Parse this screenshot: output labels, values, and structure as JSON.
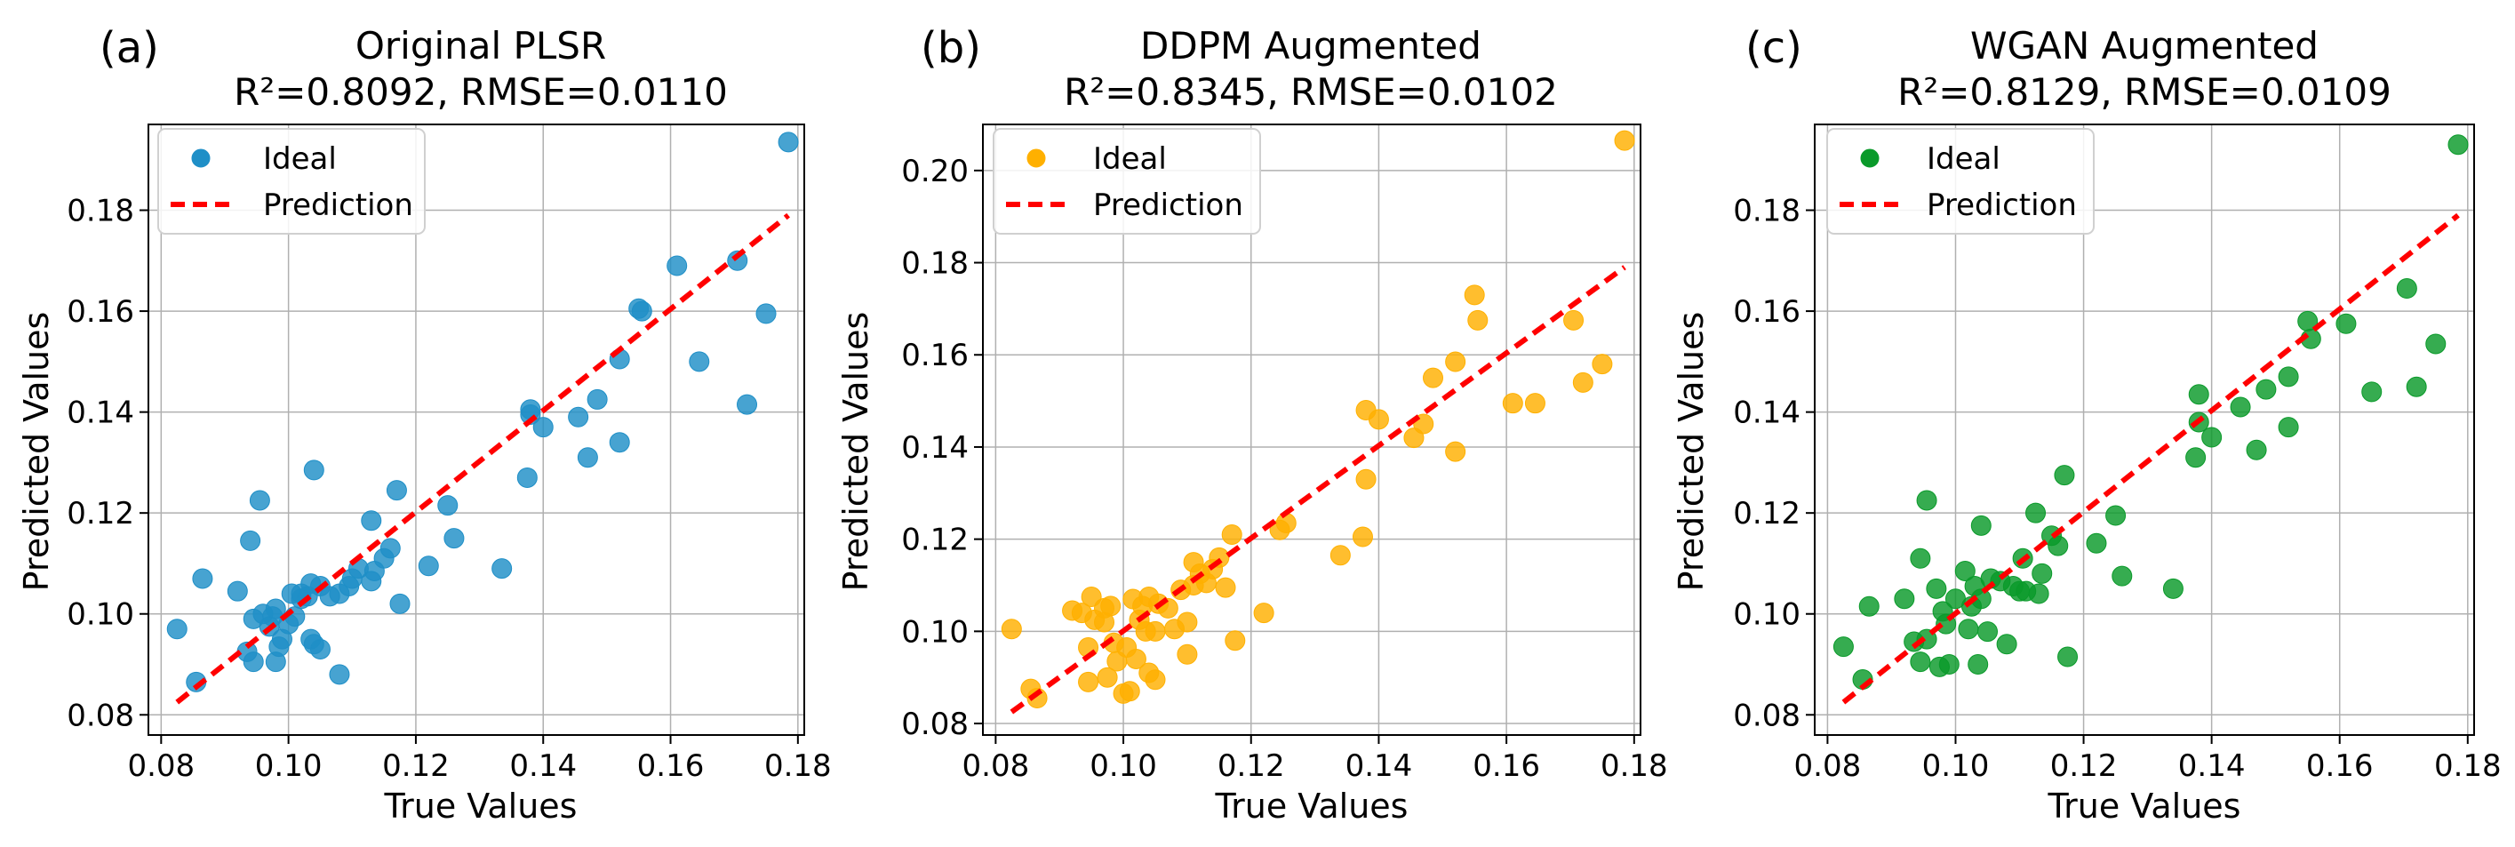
{
  "chart_data": [
    {
      "type": "scatter",
      "panel_label": "(a)",
      "title": "Original PLSR",
      "subtitle": "R²=0.8092, RMSE=0.0110",
      "xlabel": "True Values",
      "ylabel": "Predicted Values",
      "xlim": [
        0.078,
        0.181
      ],
      "ylim": [
        0.076,
        0.197
      ],
      "xticks": [
        0.08,
        0.1,
        0.12,
        0.14,
        0.16,
        0.18
      ],
      "xtick_labels": [
        "0.08",
        "0.10",
        "0.12",
        "0.14",
        "0.16",
        "0.18"
      ],
      "yticks": [
        0.08,
        0.1,
        0.12,
        0.14,
        0.16,
        0.18
      ],
      "ytick_labels": [
        "0.08",
        "0.10",
        "0.12",
        "0.14",
        "0.16",
        "0.18"
      ],
      "grid": true,
      "legend": {
        "position": "top-left",
        "scatter_label": "Ideal",
        "line_label": "Prediction"
      },
      "marker_color": "#1f8fc7",
      "line_color": "#ff0000",
      "line": {
        "x": [
          0.0825,
          0.1785
        ],
        "y": [
          0.0825,
          0.179
        ]
      },
      "points": [
        [
          0.0825,
          0.097
        ],
        [
          0.0855,
          0.0865
        ],
        [
          0.0865,
          0.107
        ],
        [
          0.092,
          0.1045
        ],
        [
          0.0935,
          0.0925
        ],
        [
          0.094,
          0.1145
        ],
        [
          0.0945,
          0.099
        ],
        [
          0.0945,
          0.0905
        ],
        [
          0.0955,
          0.1225
        ],
        [
          0.096,
          0.1
        ],
        [
          0.097,
          0.0975
        ],
        [
          0.0975,
          0.0995
        ],
        [
          0.098,
          0.101
        ],
        [
          0.098,
          0.0905
        ],
        [
          0.0985,
          0.0935
        ],
        [
          0.099,
          0.095
        ],
        [
          0.1,
          0.098
        ],
        [
          0.101,
          0.0995
        ],
        [
          0.1005,
          0.104
        ],
        [
          0.102,
          0.104
        ],
        [
          0.102,
          0.103
        ],
        [
          0.103,
          0.1035
        ],
        [
          0.1035,
          0.106
        ],
        [
          0.1035,
          0.095
        ],
        [
          0.104,
          0.1285
        ],
        [
          0.104,
          0.094
        ],
        [
          0.105,
          0.093
        ],
        [
          0.105,
          0.1055
        ],
        [
          0.1065,
          0.1035
        ],
        [
          0.108,
          0.088
        ],
        [
          0.108,
          0.104
        ],
        [
          0.1095,
          0.1055
        ],
        [
          0.11,
          0.107
        ],
        [
          0.111,
          0.109
        ],
        [
          0.113,
          0.1185
        ],
        [
          0.113,
          0.1065
        ],
        [
          0.1135,
          0.1085
        ],
        [
          0.115,
          0.111
        ],
        [
          0.116,
          0.113
        ],
        [
          0.117,
          0.1245
        ],
        [
          0.1175,
          0.102
        ],
        [
          0.122,
          0.1095
        ],
        [
          0.125,
          0.1215
        ],
        [
          0.126,
          0.115
        ],
        [
          0.1335,
          0.109
        ],
        [
          0.1375,
          0.127
        ],
        [
          0.138,
          0.1395
        ],
        [
          0.138,
          0.1405
        ],
        [
          0.14,
          0.137
        ],
        [
          0.1455,
          0.139
        ],
        [
          0.147,
          0.131
        ],
        [
          0.1485,
          0.1425
        ],
        [
          0.152,
          0.134
        ],
        [
          0.152,
          0.1505
        ],
        [
          0.155,
          0.1605
        ],
        [
          0.1555,
          0.16
        ],
        [
          0.161,
          0.169
        ],
        [
          0.1645,
          0.15
        ],
        [
          0.1705,
          0.17
        ],
        [
          0.172,
          0.1415
        ],
        [
          0.175,
          0.1595
        ],
        [
          0.1785,
          0.1935
        ]
      ]
    },
    {
      "type": "scatter",
      "panel_label": "(b)",
      "title": "DDPM Augmented",
      "subtitle": "R²=0.8345, RMSE=0.0102",
      "xlabel": "True Values",
      "ylabel": "Predicted Values",
      "xlim": [
        0.078,
        0.181
      ],
      "ylim": [
        0.0775,
        0.21
      ],
      "xticks": [
        0.08,
        0.1,
        0.12,
        0.14,
        0.16,
        0.18
      ],
      "xtick_labels": [
        "0.08",
        "0.10",
        "0.12",
        "0.14",
        "0.16",
        "0.18"
      ],
      "yticks": [
        0.08,
        0.1,
        0.12,
        0.14,
        0.16,
        0.18,
        0.2
      ],
      "ytick_labels": [
        "0.08",
        "0.10",
        "0.12",
        "0.14",
        "0.16",
        "0.18",
        "0.20"
      ],
      "grid": true,
      "legend": {
        "position": "top-left",
        "scatter_label": "Ideal",
        "line_label": "Prediction"
      },
      "marker_color": "#ffb000",
      "line_color": "#ff0000",
      "line": {
        "x": [
          0.0825,
          0.1785
        ],
        "y": [
          0.0825,
          0.179
        ]
      },
      "points": [
        [
          0.0825,
          0.1005
        ],
        [
          0.0855,
          0.0875
        ],
        [
          0.0865,
          0.0855
        ],
        [
          0.092,
          0.1045
        ],
        [
          0.0935,
          0.104
        ],
        [
          0.0945,
          0.0965
        ],
        [
          0.0945,
          0.089
        ],
        [
          0.095,
          0.1075
        ],
        [
          0.0955,
          0.1025
        ],
        [
          0.097,
          0.105
        ],
        [
          0.097,
          0.102
        ],
        [
          0.0975,
          0.09
        ],
        [
          0.098,
          0.1055
        ],
        [
          0.0985,
          0.0975
        ],
        [
          0.099,
          0.0935
        ],
        [
          0.1,
          0.0865
        ],
        [
          0.1005,
          0.0965
        ],
        [
          0.101,
          0.087
        ],
        [
          0.1015,
          0.107
        ],
        [
          0.102,
          0.094
        ],
        [
          0.1025,
          0.1025
        ],
        [
          0.103,
          0.1055
        ],
        [
          0.1035,
          0.1
        ],
        [
          0.104,
          0.1075
        ],
        [
          0.104,
          0.091
        ],
        [
          0.105,
          0.1
        ],
        [
          0.105,
          0.0895
        ],
        [
          0.1055,
          0.106
        ],
        [
          0.107,
          0.105
        ],
        [
          0.108,
          0.1005
        ],
        [
          0.109,
          0.109
        ],
        [
          0.11,
          0.102
        ],
        [
          0.11,
          0.095
        ],
        [
          0.111,
          0.115
        ],
        [
          0.111,
          0.11
        ],
        [
          0.112,
          0.1125
        ],
        [
          0.113,
          0.1105
        ],
        [
          0.114,
          0.1135
        ],
        [
          0.115,
          0.116
        ],
        [
          0.116,
          0.1095
        ],
        [
          0.117,
          0.121
        ],
        [
          0.1175,
          0.098
        ],
        [
          0.122,
          0.104
        ],
        [
          0.1245,
          0.122
        ],
        [
          0.1255,
          0.1235
        ],
        [
          0.134,
          0.1165
        ],
        [
          0.1375,
          0.1205
        ],
        [
          0.138,
          0.133
        ],
        [
          0.138,
          0.148
        ],
        [
          0.14,
          0.146
        ],
        [
          0.1455,
          0.142
        ],
        [
          0.147,
          0.145
        ],
        [
          0.1485,
          0.155
        ],
        [
          0.152,
          0.1585
        ],
        [
          0.152,
          0.139
        ],
        [
          0.155,
          0.173
        ],
        [
          0.1555,
          0.1675
        ],
        [
          0.161,
          0.1495
        ],
        [
          0.1645,
          0.1495
        ],
        [
          0.1705,
          0.1675
        ],
        [
          0.172,
          0.154
        ],
        [
          0.175,
          0.158
        ],
        [
          0.1785,
          0.2065
        ]
      ]
    },
    {
      "type": "scatter",
      "panel_label": "(c)",
      "title": "WGAN Augmented",
      "subtitle": "R²=0.8129, RMSE=0.0109",
      "xlabel": "True Values",
      "ylabel": "Predicted Values",
      "xlim": [
        0.078,
        0.181
      ],
      "ylim": [
        0.076,
        0.197
      ],
      "xticks": [
        0.08,
        0.1,
        0.12,
        0.14,
        0.16,
        0.18
      ],
      "xtick_labels": [
        "0.08",
        "0.10",
        "0.12",
        "0.14",
        "0.16",
        "0.18"
      ],
      "yticks": [
        0.08,
        0.1,
        0.12,
        0.14,
        0.16,
        0.18
      ],
      "ytick_labels": [
        "0.08",
        "0.10",
        "0.12",
        "0.14",
        "0.16",
        "0.18"
      ],
      "grid": true,
      "legend": {
        "position": "top-left",
        "scatter_label": "Ideal",
        "line_label": "Prediction"
      },
      "marker_color": "#0a9a2a",
      "line_color": "#ff0000",
      "line": {
        "x": [
          0.0825,
          0.1785
        ],
        "y": [
          0.0825,
          0.179
        ]
      },
      "points": [
        [
          0.0825,
          0.0935
        ],
        [
          0.0855,
          0.087
        ],
        [
          0.0865,
          0.1015
        ],
        [
          0.092,
          0.103
        ],
        [
          0.0935,
          0.0945
        ],
        [
          0.0945,
          0.111
        ],
        [
          0.0945,
          0.0905
        ],
        [
          0.0955,
          0.1225
        ],
        [
          0.0955,
          0.095
        ],
        [
          0.097,
          0.105
        ],
        [
          0.0975,
          0.0895
        ],
        [
          0.098,
          0.1005
        ],
        [
          0.0985,
          0.098
        ],
        [
          0.099,
          0.09
        ],
        [
          0.1,
          0.103
        ],
        [
          0.1015,
          0.1085
        ],
        [
          0.102,
          0.097
        ],
        [
          0.1025,
          0.1015
        ],
        [
          0.103,
          0.1055
        ],
        [
          0.1035,
          0.09
        ],
        [
          0.104,
          0.1175
        ],
        [
          0.104,
          0.103
        ],
        [
          0.105,
          0.0965
        ],
        [
          0.1055,
          0.107
        ],
        [
          0.107,
          0.1065
        ],
        [
          0.108,
          0.094
        ],
        [
          0.109,
          0.1055
        ],
        [
          0.11,
          0.1045
        ],
        [
          0.1105,
          0.111
        ],
        [
          0.111,
          0.1045
        ],
        [
          0.1125,
          0.12
        ],
        [
          0.113,
          0.104
        ],
        [
          0.1135,
          0.108
        ],
        [
          0.115,
          0.1155
        ],
        [
          0.116,
          0.1135
        ],
        [
          0.117,
          0.1275
        ],
        [
          0.1175,
          0.0915
        ],
        [
          0.122,
          0.114
        ],
        [
          0.125,
          0.1195
        ],
        [
          0.126,
          0.1075
        ],
        [
          0.134,
          0.105
        ],
        [
          0.1375,
          0.131
        ],
        [
          0.138,
          0.138
        ],
        [
          0.138,
          0.1435
        ],
        [
          0.14,
          0.135
        ],
        [
          0.1445,
          0.141
        ],
        [
          0.147,
          0.1325
        ],
        [
          0.1485,
          0.1445
        ],
        [
          0.152,
          0.147
        ],
        [
          0.152,
          0.137
        ],
        [
          0.155,
          0.158
        ],
        [
          0.1555,
          0.1545
        ],
        [
          0.161,
          0.1575
        ],
        [
          0.165,
          0.144
        ],
        [
          0.1705,
          0.1645
        ],
        [
          0.172,
          0.145
        ],
        [
          0.175,
          0.1535
        ],
        [
          0.1785,
          0.193
        ]
      ]
    }
  ]
}
